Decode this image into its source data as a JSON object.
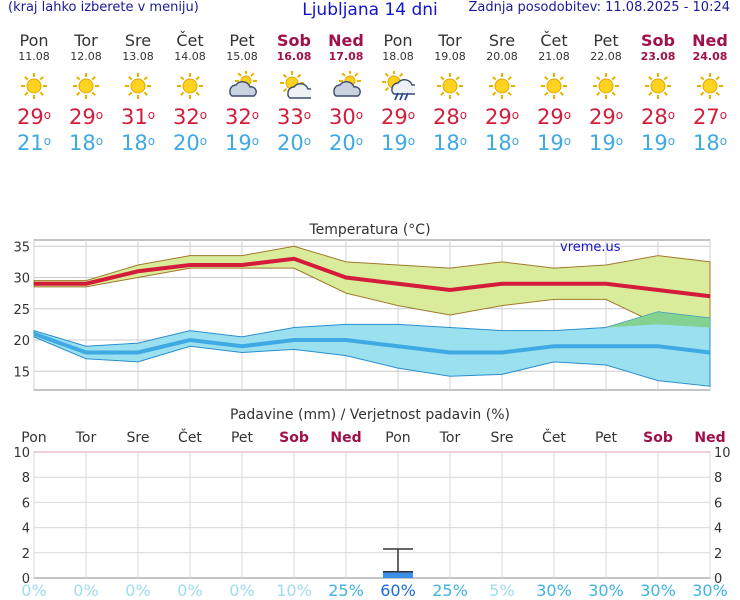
{
  "header": {
    "menu_hint": "(kraj lahko izberete v meniju)",
    "title": "Ljubljana 14 dni",
    "updated": "Zadnja posodobitev: 11.08.2025 - 10:24"
  },
  "days": [
    {
      "name": "Pon",
      "date": "11.08",
      "weekend": false,
      "icon": "sun-icon",
      "tmax": "29",
      "tmin": "21"
    },
    {
      "name": "Tor",
      "date": "12.08",
      "weekend": false,
      "icon": "sun-icon",
      "tmax": "29",
      "tmin": "18"
    },
    {
      "name": "Sre",
      "date": "13.08",
      "weekend": false,
      "icon": "sun-icon",
      "tmax": "31",
      "tmin": "18"
    },
    {
      "name": "Čet",
      "date": "14.08",
      "weekend": false,
      "icon": "sun-icon",
      "tmax": "32",
      "tmin": "20"
    },
    {
      "name": "Pet",
      "date": "15.08",
      "weekend": false,
      "icon": "partly-cloudy-icon",
      "tmax": "32",
      "tmin": "19"
    },
    {
      "name": "Sob",
      "date": "16.08",
      "weekend": true,
      "icon": "sun-cloud-icon",
      "tmax": "33",
      "tmin": "20"
    },
    {
      "name": "Ned",
      "date": "17.08",
      "weekend": true,
      "icon": "partly-cloudy-icon",
      "tmax": "30",
      "tmin": "20"
    },
    {
      "name": "Pon",
      "date": "18.08",
      "weekend": false,
      "icon": "sun-rain-icon",
      "tmax": "29",
      "tmin": "19"
    },
    {
      "name": "Tor",
      "date": "19.08",
      "weekend": false,
      "icon": "sun-icon",
      "tmax": "28",
      "tmin": "18"
    },
    {
      "name": "Sre",
      "date": "20.08",
      "weekend": false,
      "icon": "sun-icon",
      "tmax": "29",
      "tmin": "18"
    },
    {
      "name": "Čet",
      "date": "21.08",
      "weekend": false,
      "icon": "sun-icon",
      "tmax": "29",
      "tmin": "19"
    },
    {
      "name": "Pet",
      "date": "22.08",
      "weekend": false,
      "icon": "sun-icon",
      "tmax": "29",
      "tmin": "19"
    },
    {
      "name": "Sob",
      "date": "23.08",
      "weekend": true,
      "icon": "sun-icon",
      "tmax": "28",
      "tmin": "19"
    },
    {
      "name": "Ned",
      "date": "24.08",
      "weekend": true,
      "icon": "sun-icon",
      "tmax": "27",
      "tmin": "18"
    }
  ],
  "degree_symbol": "o",
  "colors": {
    "max": "#d41c3a",
    "min": "#3fa9e4",
    "weekend": "#a0104a",
    "max_band": "#d9ec9c",
    "min_band": "#9be0ee"
  },
  "chart_data": [
    {
      "type": "line",
      "title": "Temperatura (°C)",
      "watermark": "vreme.us",
      "ylim": [
        12,
        36
      ],
      "yticks": [
        "15",
        "20",
        "25",
        "30",
        "35"
      ],
      "grid": true,
      "series": [
        {
          "values": [
            29,
            29,
            31,
            32,
            32,
            33,
            30,
            29,
            28,
            29,
            29,
            29,
            28,
            27
          ]
        },
        {
          "values": [
            21,
            18,
            18,
            20,
            19,
            20,
            20,
            19,
            18,
            18,
            19,
            19,
            19,
            18
          ]
        }
      ],
      "max_band_upper": [
        29.5,
        29.5,
        32,
        33.5,
        33.5,
        35,
        32.5,
        32,
        31.5,
        32.5,
        31.5,
        32,
        33.5,
        32.5
      ],
      "max_band_lower": [
        28.5,
        28.5,
        30,
        31.5,
        31.5,
        31.5,
        27.5,
        25.5,
        24,
        25.5,
        26.5,
        26.5,
        22.5,
        22
      ],
      "min_band_upper": [
        21.5,
        19,
        19.5,
        21.5,
        20.5,
        22,
        22.5,
        22.5,
        22,
        21.5,
        21.5,
        22,
        24.5,
        23.5
      ],
      "min_band_lower": [
        20.5,
        17,
        16.5,
        19,
        18,
        18.5,
        17.5,
        15.5,
        14.2,
        14.5,
        16.5,
        16,
        13.5,
        12.6
      ]
    },
    {
      "type": "bar",
      "title": "Padavine (mm) / Verjetnost padavin (%)",
      "ylim": [
        0,
        10
      ],
      "yticks": [
        "0",
        "2",
        "4",
        "6",
        "8",
        "10"
      ],
      "categories": [
        "Pon",
        "Tor",
        "Sre",
        "Čet",
        "Pet",
        "Sob",
        "Ned",
        "Pon",
        "Tor",
        "Sre",
        "Čet",
        "Pet",
        "Sob",
        "Ned"
      ],
      "values": [
        0,
        0,
        0,
        0,
        0,
        0,
        0,
        0.5,
        0,
        0,
        0,
        0,
        0,
        0
      ],
      "error_upper": [
        0,
        0,
        0,
        0,
        0,
        0,
        0,
        2.3,
        0,
        0,
        0,
        0,
        0,
        0
      ],
      "probability": [
        "0%",
        "0%",
        "0%",
        "0%",
        "0%",
        "10%",
        "25%",
        "60%",
        "25%",
        "5%",
        "30%",
        "30%",
        "30%",
        "30%"
      ]
    }
  ]
}
